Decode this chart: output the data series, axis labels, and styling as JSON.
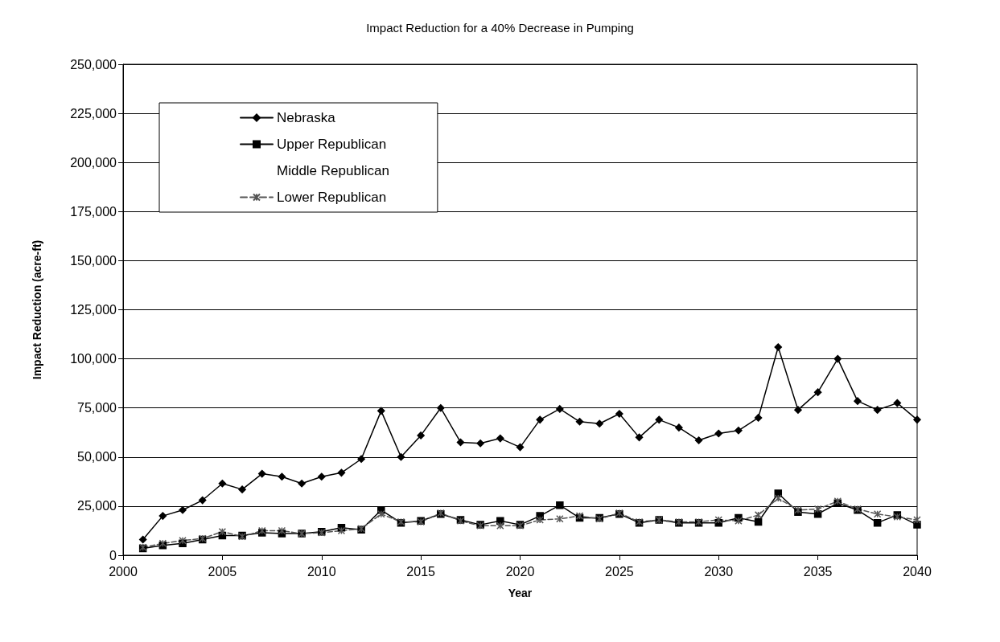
{
  "chart_data": {
    "type": "line",
    "title": "Impact Reduction for a 40% Decrease in Pumping",
    "xlabel": "Year",
    "ylabel": "Impact Reduction (acre-ft)",
    "x": [
      2001,
      2002,
      2003,
      2004,
      2005,
      2006,
      2007,
      2008,
      2009,
      2010,
      2011,
      2012,
      2013,
      2014,
      2015,
      2016,
      2017,
      2018,
      2019,
      2020,
      2021,
      2022,
      2023,
      2024,
      2025,
      2026,
      2027,
      2028,
      2029,
      2030,
      2031,
      2032,
      2033,
      2034,
      2035,
      2036,
      2037,
      2038,
      2039,
      2040
    ],
    "series": [
      {
        "name": "Nebraska",
        "color": "#000000",
        "marker": "diamond",
        "line_style": "solid",
        "values": [
          8000,
          20000,
          23000,
          28000,
          36500,
          33500,
          41500,
          40000,
          36500,
          40000,
          42000,
          49000,
          73500,
          50000,
          61000,
          75000,
          57500,
          57000,
          59500,
          55000,
          69000,
          74500,
          68000,
          67000,
          72000,
          60000,
          69000,
          65000,
          58500,
          62000,
          63500,
          70000,
          106000,
          74000,
          83000,
          100000,
          78500,
          74000,
          77500,
          69000
        ]
      },
      {
        "name": "Upper Republican",
        "color": "#000000",
        "marker": "square",
        "line_style": "solid",
        "values": [
          3500,
          5000,
          6000,
          8000,
          10000,
          10000,
          11500,
          11000,
          11000,
          12000,
          14000,
          13000,
          23000,
          16500,
          17500,
          21000,
          18000,
          15500,
          17500,
          15500,
          20000,
          25500,
          19000,
          19000,
          21000,
          16500,
          18000,
          16500,
          16500,
          16500,
          19000,
          17000,
          31500,
          22000,
          21000,
          26500,
          23000,
          16500,
          20500,
          15500
        ]
      },
      {
        "name": "Middle Republican",
        "values": [
          null,
          null,
          null,
          null,
          null,
          null,
          null,
          null,
          null,
          null,
          null,
          null,
          null,
          null,
          null,
          null,
          null,
          null,
          null,
          null,
          null,
          null,
          null,
          null,
          null,
          null,
          null,
          null,
          null,
          null,
          null,
          null,
          null,
          null,
          null,
          null,
          null,
          null,
          null,
          null
        ]
      },
      {
        "name": "Lower Republican",
        "color": "#555555",
        "marker": "cross",
        "line_style": "dashed",
        "values": [
          4000,
          6000,
          7500,
          8500,
          12000,
          9500,
          12500,
          12500,
          11000,
          11500,
          12500,
          13500,
          21000,
          17000,
          17000,
          21500,
          17500,
          15000,
          15000,
          15000,
          18000,
          18500,
          20000,
          18500,
          21500,
          17000,
          18000,
          17000,
          17000,
          18000,
          17500,
          20500,
          29000,
          23000,
          23500,
          27500,
          23500,
          21000,
          19500,
          18000
        ]
      }
    ],
    "xlim": [
      2000,
      2040
    ],
    "xticks": [
      2000,
      2005,
      2010,
      2015,
      2020,
      2025,
      2030,
      2035,
      2040
    ],
    "ylim": [
      0,
      250000
    ],
    "yticks": [
      0,
      {
        "value": 25000,
        "label": "25,000"
      },
      {
        "value": 50000,
        "label": "50,000"
      },
      {
        "value": 75000,
        "label": "75,000"
      },
      {
        "value": 100000,
        "label": "100,000"
      },
      {
        "value": 125000,
        "label": "125,000"
      },
      {
        "value": 150000,
        "label": "150,000"
      },
      {
        "value": 175000,
        "label": "175,000"
      },
      {
        "value": 200000,
        "label": "200,000"
      },
      {
        "value": 225000,
        "label": "225,000"
      },
      {
        "value": 250000,
        "label": "250,000"
      }
    ],
    "grid": "y",
    "legend": "top left"
  }
}
